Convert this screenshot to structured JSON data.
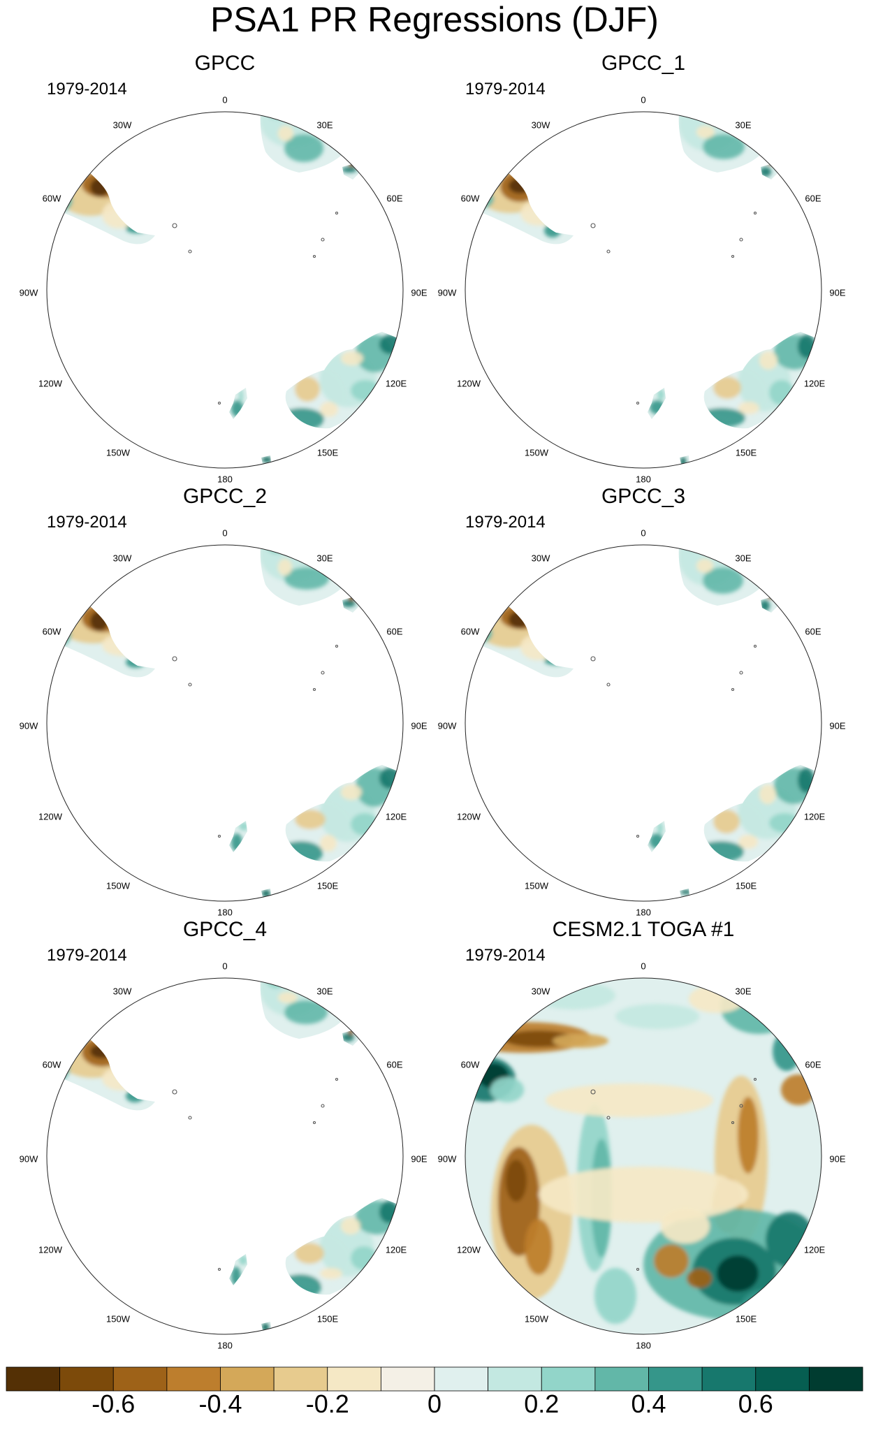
{
  "title": "PSA1 PR Regressions (DJF)",
  "panels": [
    {
      "name": "GPCC",
      "period": "1979-2014",
      "mode": "land"
    },
    {
      "name": "GPCC_1",
      "period": "1979-2014",
      "mode": "land"
    },
    {
      "name": "GPCC_2",
      "period": "1979-2014",
      "mode": "land"
    },
    {
      "name": "GPCC_3",
      "period": "1979-2014",
      "mode": "land"
    },
    {
      "name": "GPCC_4",
      "period": "1979-2014",
      "mode": "land"
    },
    {
      "name": "CESM2.1 TOGA #1",
      "period": "1979-2014",
      "mode": "full"
    }
  ],
  "longitude_labels": [
    "0",
    "30E",
    "60E",
    "90E",
    "120E",
    "150E",
    "180",
    "150W",
    "120W",
    "90W",
    "60W",
    "30W"
  ],
  "colorbar": {
    "colors": [
      "#543005",
      "#7c4a0a",
      "#9e6218",
      "#bd7e2d",
      "#d4a859",
      "#e7cb8e",
      "#f5e8c5",
      "#f4f0e6",
      "#e0f0ee",
      "#c3e8e1",
      "#92d5c9",
      "#62b7a8",
      "#35968a",
      "#17786d",
      "#065e51",
      "#003c30"
    ],
    "tick_labels": [
      "-0.6",
      "-0.4",
      "-0.2",
      "0",
      "0.2",
      "0.4",
      "0.6"
    ]
  }
}
